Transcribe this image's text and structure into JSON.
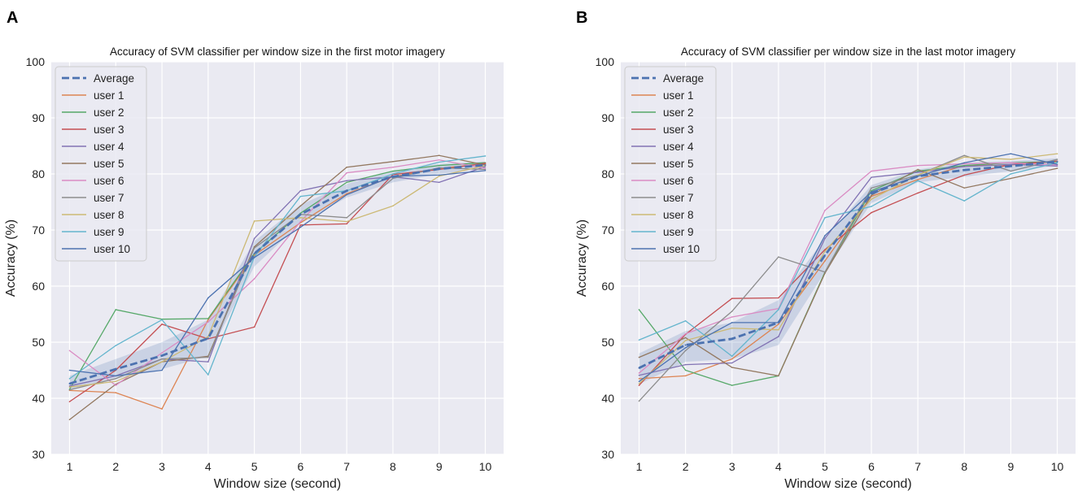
{
  "chart_data": [
    {
      "panel_label": "A",
      "type": "line",
      "title": "Accuracy of SVM classifier per window size in the first motor imagery",
      "xlabel": "Window size (second)",
      "ylabel": "Accuracy (%)",
      "x": [
        1,
        2,
        3,
        4,
        5,
        6,
        7,
        8,
        9,
        10
      ],
      "xticks": [
        1,
        2,
        3,
        4,
        5,
        6,
        7,
        8,
        9,
        10
      ],
      "ylim": [
        30,
        100
      ],
      "yticks": [
        30,
        40,
        50,
        60,
        70,
        80,
        90,
        100
      ],
      "grid": true,
      "legend_position": "top-left",
      "band": {
        "lower": [
          41.5,
          43.5,
          45.2,
          47.5,
          63.5,
          71.2,
          75.8,
          78.5,
          80.0,
          81.0
        ],
        "upper": [
          44.0,
          47.0,
          50.0,
          54.0,
          68.0,
          74.5,
          78.2,
          80.5,
          81.8,
          82.2
        ]
      },
      "average": {
        "name": "Average",
        "color": "#4c72b0",
        "values": [
          42.6,
          45.2,
          47.6,
          50.7,
          65.8,
          72.8,
          77.0,
          79.5,
          80.9,
          81.6
        ]
      },
      "series": [
        {
          "name": "user 1",
          "color": "#dd8452",
          "values": [
            41.4,
            41.0,
            38.1,
            54.0,
            65.5,
            71.3,
            76.5,
            79.5,
            81.0,
            81.8
          ]
        },
        {
          "name": "user 2",
          "color": "#55a868",
          "values": [
            41.6,
            55.8,
            54.1,
            54.2,
            65.8,
            73.0,
            78.5,
            80.5,
            81.5,
            82.0
          ]
        },
        {
          "name": "user 3",
          "color": "#c44e52",
          "values": [
            39.4,
            45.0,
            53.2,
            50.6,
            52.7,
            70.9,
            71.1,
            79.9,
            80.8,
            81.9
          ]
        },
        {
          "name": "user 4",
          "color": "#8172b3",
          "values": [
            42.2,
            44.0,
            47.0,
            46.5,
            68.5,
            77.0,
            78.8,
            79.5,
            78.5,
            81.3
          ]
        },
        {
          "name": "user 5",
          "color": "#937860",
          "values": [
            36.2,
            42.5,
            46.5,
            47.5,
            67.0,
            74.3,
            81.2,
            82.2,
            83.3,
            81.6
          ]
        },
        {
          "name": "user 6",
          "color": "#da8bc3",
          "values": [
            48.5,
            42.3,
            48.1,
            53.6,
            61.3,
            71.5,
            80.2,
            81.2,
            82.5,
            81.0
          ]
        },
        {
          "name": "user 7",
          "color": "#8c8c8c",
          "values": [
            41.5,
            43.5,
            47.0,
            47.3,
            66.8,
            72.8,
            72.2,
            79.2,
            81.1,
            80.8
          ]
        },
        {
          "name": "user 8",
          "color": "#ccb974",
          "values": [
            42.0,
            43.0,
            46.5,
            51.0,
            71.6,
            72.2,
            71.5,
            74.3,
            79.6,
            81.5
          ]
        },
        {
          "name": "user 9",
          "color": "#64b5cd",
          "values": [
            43.5,
            49.4,
            54.0,
            44.2,
            65.2,
            76.0,
            77.0,
            80.0,
            82.1,
            83.2
          ]
        },
        {
          "name": "user 10",
          "color": "#4c72b0",
          "values": [
            45.0,
            44.0,
            45.0,
            57.9,
            65.1,
            70.5,
            76.3,
            79.6,
            79.8,
            80.6
          ]
        }
      ]
    },
    {
      "panel_label": "B",
      "type": "line",
      "title": "Accuracy of SVM classifier per window size in the last motor imagery",
      "xlabel": "Window size (second)",
      "ylabel": "Accuracy (%)",
      "x": [
        1,
        2,
        3,
        4,
        5,
        6,
        7,
        8,
        9,
        10
      ],
      "xticks": [
        1,
        2,
        3,
        4,
        5,
        6,
        7,
        8,
        9,
        10
      ],
      "ylim": [
        30,
        100
      ],
      "yticks": [
        30,
        40,
        50,
        60,
        70,
        80,
        90,
        100
      ],
      "grid": true,
      "legend_position": "top-left",
      "band": {
        "lower": [
          42.5,
          46.5,
          47.0,
          49.5,
          62.5,
          74.8,
          78.5,
          79.5,
          80.5,
          81.5
        ],
        "upper": [
          48.0,
          52.0,
          53.5,
          57.5,
          68.5,
          78.0,
          80.8,
          82.0,
          82.3,
          82.8
        ]
      },
      "average": {
        "name": "Average",
        "color": "#4c72b0",
        "values": [
          45.4,
          49.5,
          50.6,
          53.5,
          65.5,
          76.5,
          79.6,
          80.7,
          81.4,
          82.2
        ]
      },
      "series": [
        {
          "name": "user 1",
          "color": "#dd8452",
          "values": [
            43.5,
            44.0,
            47.0,
            53.2,
            64.5,
            76.0,
            79.0,
            81.5,
            81.6,
            82.2
          ]
        },
        {
          "name": "user 2",
          "color": "#55a868",
          "values": [
            55.8,
            45.0,
            42.3,
            44.0,
            62.5,
            77.0,
            80.5,
            81.5,
            82.0,
            82.2
          ]
        },
        {
          "name": "user 3",
          "color": "#c44e52",
          "values": [
            42.3,
            51.4,
            57.8,
            57.9,
            66.5,
            73.1,
            76.6,
            79.8,
            81.7,
            82.3
          ]
        },
        {
          "name": "user 4",
          "color": "#8172b3",
          "values": [
            44.1,
            46.0,
            46.3,
            51.0,
            68.5,
            79.4,
            80.3,
            81.3,
            81.7,
            81.4
          ]
        },
        {
          "name": "user 5",
          "color": "#937860",
          "values": [
            47.3,
            50.8,
            45.5,
            44.0,
            62.3,
            76.2,
            80.8,
            77.5,
            79.2,
            81.0
          ]
        },
        {
          "name": "user 6",
          "color": "#da8bc3",
          "values": [
            44.5,
            51.5,
            54.5,
            56.0,
            73.5,
            80.5,
            81.5,
            81.8,
            82.0,
            81.6
          ]
        },
        {
          "name": "user 7",
          "color": "#8c8c8c",
          "values": [
            39.5,
            48.5,
            55.5,
            65.2,
            62.5,
            77.5,
            79.8,
            83.3,
            80.5,
            82.6
          ]
        },
        {
          "name": "user 8",
          "color": "#ccb974",
          "values": [
            42.6,
            50.3,
            52.5,
            52.2,
            66.2,
            75.5,
            79.8,
            83.0,
            82.6,
            83.6
          ]
        },
        {
          "name": "user 9",
          "color": "#64b5cd",
          "values": [
            50.4,
            53.8,
            47.5,
            55.8,
            72.2,
            74.2,
            78.8,
            75.2,
            80.0,
            82.0
          ]
        },
        {
          "name": "user 10",
          "color": "#4c72b0",
          "values": [
            43.0,
            49.0,
            53.5,
            53.5,
            69.0,
            76.8,
            79.6,
            82.0,
            83.6,
            81.7
          ]
        }
      ]
    }
  ]
}
